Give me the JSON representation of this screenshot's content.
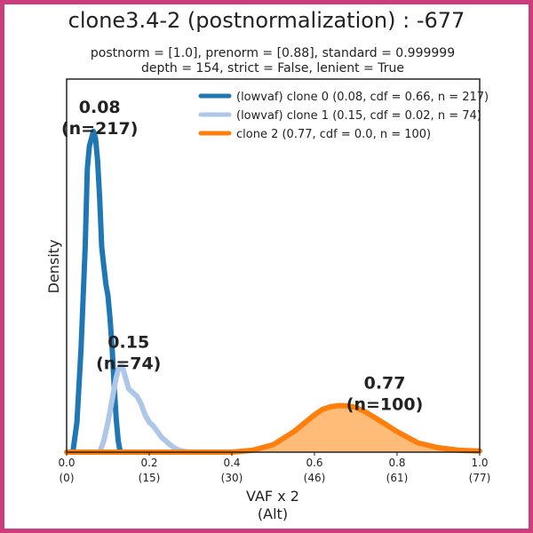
{
  "chart_data": {
    "type": "line",
    "title": "clone3.4-2 (postnormalization) : -677",
    "subtitle_lines": [
      "postnorm = [1.0], prenorm = [0.88], standard = 0.999999",
      "depth = 154, strict = False, lenient = True"
    ],
    "xlabel": "VAF x 2",
    "xlabel2": "(Alt)",
    "ylabel": "Density",
    "xlim": [
      0.0,
      1.0
    ],
    "ylim": [
      0,
      1.0
    ],
    "xticks": [
      {
        "value": 0.0,
        "label": "0.0",
        "sublabel": "(0)"
      },
      {
        "value": 0.2,
        "label": "0.2",
        "sublabel": "(15)"
      },
      {
        "value": 0.4,
        "label": "0.4",
        "sublabel": "(30)"
      },
      {
        "value": 0.6,
        "label": "0.6",
        "sublabel": "(46)"
      },
      {
        "value": 0.8,
        "label": "0.8",
        "sublabel": "(61)"
      },
      {
        "value": 1.0,
        "label": "1.0",
        "sublabel": "(77)"
      }
    ],
    "grid": false,
    "legend_position": "top-right",
    "series": [
      {
        "name": "(lowvaf) clone 0 (0.08, cdf = 0.66, n = 217)",
        "color": "#1f77b4",
        "fill": false,
        "x": [
          0.015,
          0.025,
          0.035,
          0.045,
          0.05,
          0.055,
          0.06,
          0.065,
          0.07,
          0.075,
          0.08,
          0.085,
          0.09,
          0.095,
          0.1,
          0.105,
          0.11,
          0.115,
          0.12,
          0.125,
          0.13
        ],
        "y": [
          0.0,
          0.08,
          0.28,
          0.55,
          0.76,
          0.82,
          0.84,
          0.86,
          0.84,
          0.78,
          0.68,
          0.55,
          0.5,
          0.45,
          0.42,
          0.36,
          0.28,
          0.18,
          0.09,
          0.03,
          0.0
        ]
      },
      {
        "name": "(lowvaf) clone 1 (0.15, cdf = 0.02, n = 74)",
        "color": "#aec7e8",
        "fill": false,
        "x": [
          0.08,
          0.09,
          0.1,
          0.11,
          0.115,
          0.12,
          0.125,
          0.13,
          0.135,
          0.14,
          0.15,
          0.16,
          0.17,
          0.18,
          0.19,
          0.2,
          0.21,
          0.22,
          0.23,
          0.24,
          0.25,
          0.26,
          0.27,
          0.28,
          0.29,
          0.3
        ],
        "y": [
          0.0,
          0.03,
          0.08,
          0.14,
          0.17,
          0.2,
          0.22,
          0.23,
          0.23,
          0.21,
          0.17,
          0.16,
          0.15,
          0.13,
          0.1,
          0.08,
          0.07,
          0.055,
          0.04,
          0.03,
          0.02,
          0.012,
          0.006,
          0.003,
          0.001,
          0.0
        ]
      },
      {
        "name": "clone 2 (0.77, cdf = 0.0, n = 100)",
        "color": "#ff7f0e",
        "fill": true,
        "fill_color": "#ffbb78",
        "x": [
          0.0,
          0.3,
          0.4,
          0.45,
          0.5,
          0.55,
          0.6,
          0.62,
          0.64,
          0.66,
          0.68,
          0.7,
          0.72,
          0.75,
          0.8,
          0.85,
          0.9,
          0.95,
          1.0
        ],
        "y": [
          0.0,
          0.0,
          0.0,
          0.005,
          0.02,
          0.055,
          0.1,
          0.115,
          0.122,
          0.125,
          0.124,
          0.12,
          0.11,
          0.09,
          0.055,
          0.025,
          0.012,
          0.005,
          0.003
        ]
      }
    ],
    "annotations": [
      {
        "line1": "0.08",
        "line2": "(n=217)",
        "x": 0.08,
        "y": 0.91
      },
      {
        "line1": "0.15",
        "line2": "(n=74)",
        "x": 0.15,
        "y": 0.28
      },
      {
        "line1": "0.77",
        "line2": "(n=100)",
        "x": 0.77,
        "y": 0.17
      }
    ]
  }
}
